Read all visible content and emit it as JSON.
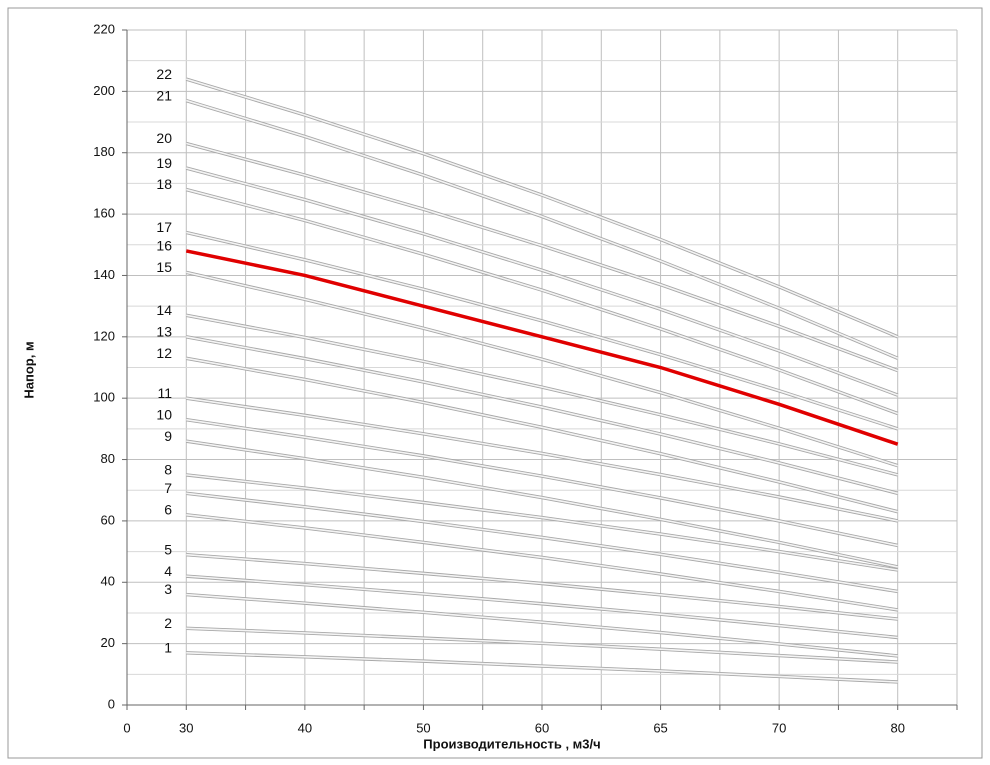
{
  "chart_data": {
    "type": "line",
    "x_axis_label": "Производительность , м3/ч",
    "y_axis_label": "Напор, м",
    "categories": [
      "0",
      "30",
      "40",
      "50",
      "60",
      "65",
      "70",
      "80"
    ],
    "ylim": [
      0,
      220
    ],
    "yticks": [
      0,
      20,
      40,
      60,
      80,
      100,
      120,
      140,
      160,
      180,
      200,
      220
    ],
    "grid": true,
    "series": [
      {
        "name": "1",
        "color": "#cfcfcf",
        "values": [
          null,
          17,
          15.7,
          14.3,
          12.7,
          11.1,
          9.3,
          7.5
        ]
      },
      {
        "name": "2",
        "color": "#cfcfcf",
        "values": [
          null,
          25,
          23.5,
          21.8,
          20.1,
          18.2,
          16.1,
          14
        ]
      },
      {
        "name": "3",
        "color": "#cfcfcf",
        "values": [
          null,
          36,
          33.2,
          30.2,
          27,
          23.6,
          19.9,
          16
        ]
      },
      {
        "name": "4",
        "color": "#cfcfcf",
        "values": [
          null,
          42,
          39.2,
          36.2,
          33,
          29.6,
          25.9,
          22
        ]
      },
      {
        "name": "5",
        "color": "#cfcfcf",
        "values": [
          null,
          49,
          46.1,
          42.9,
          39.6,
          35.9,
          32.1,
          28
        ]
      },
      {
        "name": "6",
        "color": "#cfcfcf",
        "values": [
          null,
          62,
          57.7,
          53,
          48.1,
          42.7,
          37,
          31
        ]
      },
      {
        "name": "7",
        "color": "#cfcfcf",
        "values": [
          null,
          69,
          64.6,
          59.8,
          54.6,
          49.1,
          43.2,
          37
        ]
      },
      {
        "name": "8",
        "color": "#cfcfcf",
        "values": [
          null,
          75,
          70.7,
          66,
          61.1,
          55.7,
          50,
          44
        ]
      },
      {
        "name": "9",
        "color": "#cfcfcf",
        "values": [
          null,
          86,
          80.3,
          74.2,
          67.6,
          60.5,
          53,
          45
        ]
      },
      {
        "name": "10",
        "color": "#cfcfcf",
        "values": [
          null,
          93,
          87.3,
          81.2,
          74.6,
          67.5,
          60,
          52
        ]
      },
      {
        "name": "11",
        "color": "#cfcfcf",
        "values": [
          null,
          100,
          94.4,
          88.4,
          82,
          75.1,
          67.8,
          60
        ]
      },
      {
        "name": "12",
        "color": "#cfcfcf",
        "values": [
          null,
          113,
          106.1,
          98.6,
          90.5,
          81.9,
          72.7,
          63
        ]
      },
      {
        "name": "13",
        "color": "#cfcfcf",
        "values": [
          null,
          120,
          112.9,
          105.3,
          97.1,
          88.3,
          78.9,
          69
        ]
      },
      {
        "name": "14",
        "color": "#cfcfcf",
        "values": [
          null,
          127,
          119.8,
          112,
          103.6,
          94.6,
          85.1,
          75
        ]
      },
      {
        "name": "15",
        "color": "#cfcfcf",
        "values": [
          null,
          141,
          132.2,
          122.8,
          112.7,
          101.8,
          90.2,
          78
        ]
      },
      {
        "name": "16",
        "color": "#e00000",
        "values": [
          null,
          148,
          140,
          130,
          120,
          110,
          98,
          85
        ]
      },
      {
        "name": "17",
        "color": "#cfcfcf",
        "values": [
          null,
          154,
          145.1,
          135.5,
          125.2,
          114.2,
          102.4,
          90
        ]
      },
      {
        "name": "18",
        "color": "#cfcfcf",
        "values": [
          null,
          168,
          157.9,
          146.9,
          135.2,
          122.6,
          109.2,
          95
        ]
      },
      {
        "name": "19",
        "color": "#cfcfcf",
        "values": [
          null,
          175,
          164.7,
          153.6,
          141.7,
          129,
          115.4,
          101
        ]
      },
      {
        "name": "20",
        "color": "#cfcfcf",
        "values": [
          null,
          183,
          172.7,
          161.6,
          149.7,
          137,
          123.4,
          109
        ]
      },
      {
        "name": "21",
        "color": "#cfcfcf",
        "values": [
          null,
          197,
          185.3,
          172.7,
          159.2,
          144.7,
          129.3,
          113
        ]
      },
      {
        "name": "22",
        "color": "#cfcfcf",
        "values": [
          null,
          204,
          192.3,
          179.7,
          166.2,
          151.7,
          136.3,
          120
        ]
      }
    ]
  }
}
